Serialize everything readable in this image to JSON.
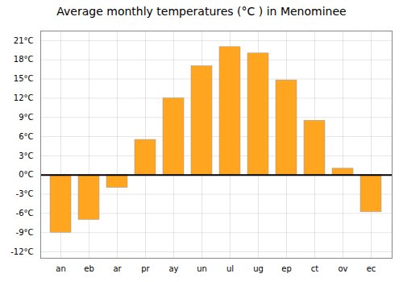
{
  "chart_data": {
    "type": "bar",
    "title": "Average monthly temperatures (°C ) in Menominee",
    "categories": [
      "an",
      "eb",
      "ar",
      "pr",
      "ay",
      "un",
      "ul",
      "ug",
      "ep",
      "ct",
      "ov",
      "ec"
    ],
    "values": [
      -9.0,
      -7.0,
      -2.0,
      5.5,
      12.0,
      17.0,
      20.0,
      19.0,
      14.8,
      8.5,
      1.0,
      -5.8
    ],
    "color": "#FFA520",
    "ylim": [
      -13,
      22.5
    ],
    "yticks": [
      {
        "value": -12,
        "label": "-12°C"
      },
      {
        "value": -9,
        "label": "-9°C"
      },
      {
        "value": -6,
        "label": "-6°C"
      },
      {
        "value": -3,
        "label": "-3°C"
      },
      {
        "value": 0,
        "label": "0°C"
      },
      {
        "value": 3,
        "label": "3°C"
      },
      {
        "value": 6,
        "label": "6°C"
      },
      {
        "value": 9,
        "label": "9°C"
      },
      {
        "value": 12,
        "label": "12°C"
      },
      {
        "value": 15,
        "label": "15°C"
      },
      {
        "value": 18,
        "label": "18°C"
      },
      {
        "value": 21,
        "label": "21°C"
      }
    ],
    "grid": true
  }
}
